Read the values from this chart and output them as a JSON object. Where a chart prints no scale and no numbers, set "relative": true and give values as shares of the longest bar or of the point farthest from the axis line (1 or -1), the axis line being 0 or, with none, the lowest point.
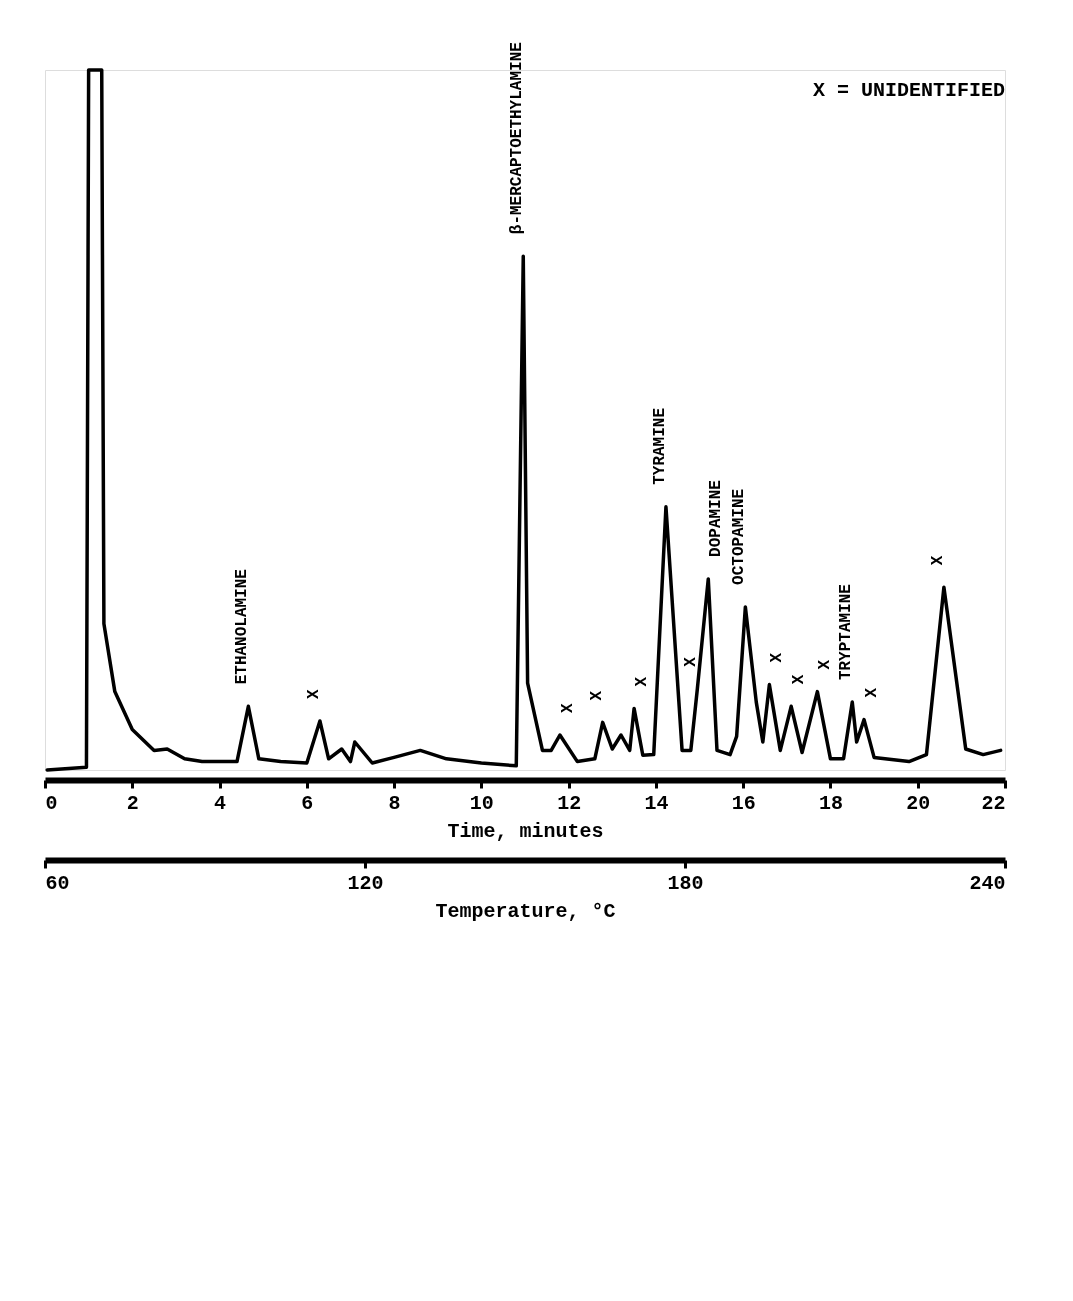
{
  "chart_data": {
    "type": "line",
    "relative": true,
    "xlabel": "Time, minutes",
    "xlim": [
      0,
      22
    ],
    "xticks": [
      0,
      2,
      4,
      6,
      8,
      10,
      12,
      14,
      16,
      18,
      20,
      22
    ],
    "x2label": "Temperature, °C",
    "x2lim": [
      60,
      240
    ],
    "x2ticks": [
      60,
      120,
      180,
      240
    ],
    "x": [
      0.05,
      0.95,
      1.0,
      1.3,
      1.35,
      1.6,
      2.0,
      2.5,
      2.8,
      3.2,
      3.6,
      4.4,
      4.66,
      4.9,
      5.4,
      6.0,
      6.3,
      6.5,
      6.8,
      7.0,
      7.1,
      7.5,
      8.0,
      8.6,
      9.2,
      10.0,
      10.8,
      10.96,
      11.06,
      11.4,
      11.6,
      11.8,
      12.2,
      12.6,
      12.78,
      13.0,
      13.2,
      13.4,
      13.5,
      13.7,
      13.95,
      14.23,
      14.6,
      14.8,
      14.95,
      15.2,
      15.4,
      15.7,
      15.85,
      16.05,
      16.3,
      16.45,
      16.6,
      16.85,
      17.1,
      17.35,
      17.7,
      18.0,
      18.3,
      18.5,
      18.6,
      18.77,
      19.0,
      19.8,
      20.2,
      20.6,
      21.1,
      21.5,
      21.9
    ],
    "series": [
      {
        "color": "#000000",
        "values": [
          0,
          0.004,
          1,
          1,
          0.209,
          0.112,
          0.058,
          0.028,
          0.03,
          0.016,
          0.012,
          0.012,
          0.091,
          0.016,
          0.012,
          0.01,
          0.07,
          0.016,
          0.03,
          0.012,
          0.04,
          0.01,
          0.018,
          0.028,
          0.016,
          0.01,
          0.006,
          0.734,
          0.124,
          0.028,
          0.028,
          0.05,
          0.012,
          0.016,
          0.068,
          0.03,
          0.05,
          0.028,
          0.088,
          0.021,
          0.022,
          0.376,
          0.028,
          0.028,
          0.116,
          0.273,
          0.028,
          0.022,
          0.048,
          0.233,
          0.097,
          0.04,
          0.122,
          0.028,
          0.091,
          0.025,
          0.112,
          0.016,
          0.016,
          0.097,
          0.04,
          0.072,
          0.018,
          0.012,
          0.022,
          0.261,
          0.03,
          0.022,
          0.028
        ]
      }
    ],
    "annotations": [
      {
        "text": "ETHANOLAMINE",
        "x": 4.66,
        "y": 0.091
      },
      {
        "text": "X",
        "x": 6.3,
        "y": 0.07
      },
      {
        "text": "β-MERCAPTOETHYLAMINE",
        "x": 10.96,
        "y": 0.734
      },
      {
        "text": "X",
        "x": 11.8,
        "y": 0.05
      },
      {
        "text": "X",
        "x": 12.78,
        "y": 0.068
      },
      {
        "text": "X",
        "x": 13.5,
        "y": 0.088
      },
      {
        "text": "TYRAMINE",
        "x": 14.23,
        "y": 0.376
      },
      {
        "text": "X",
        "x": 14.95,
        "y": 0.116
      },
      {
        "text": "DOPAMINE",
        "x": 15.2,
        "y": 0.273
      },
      {
        "text": "OCTOPAMINE",
        "x": 16.05,
        "y": 0.233
      },
      {
        "text": "X",
        "x": 16.6,
        "y": 0.122
      },
      {
        "text": "X",
        "x": 17.1,
        "y": 0.091
      },
      {
        "text": "X",
        "x": 17.7,
        "y": 0.112
      },
      {
        "text": "TRYPTAMINE",
        "x": 18.5,
        "y": 0.097
      },
      {
        "text": "X",
        "x": 18.77,
        "y": 0.072
      },
      {
        "text": "X",
        "x": 20.6,
        "y": 0.261
      },
      "X = UNIDENTIFIED"
    ]
  }
}
